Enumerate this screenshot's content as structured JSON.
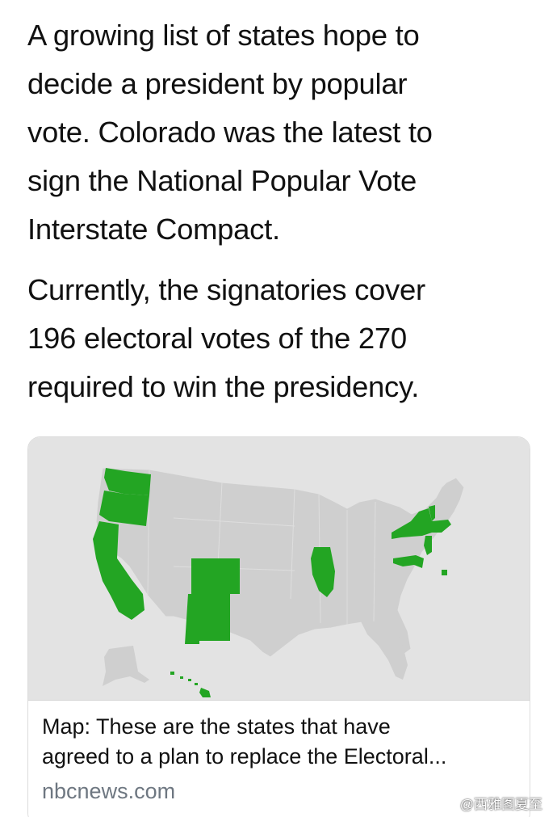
{
  "tweet": {
    "paragraph_1": "A growing list of states hope to\ndecide a president by popular\nvote. Colorado was the latest to\nsign the National Popular Vote\nInterstate Compact.",
    "paragraph_2": "Currently, the signatories cover\n196 electoral votes of the 270\nrequired to win the presidency."
  },
  "card": {
    "title": "Map: These are the states that have\nagreed to a plan to replace the Electoral...",
    "domain": "nbcnews.com",
    "map": {
      "icon": "us-map-icon",
      "signatory_color": "#23a523",
      "other_color": "#cfcfcf",
      "background_color": "#e3e3e3"
    }
  },
  "watermark": {
    "text": "@西雅图夏至",
    "icon": "weibo-icon"
  }
}
